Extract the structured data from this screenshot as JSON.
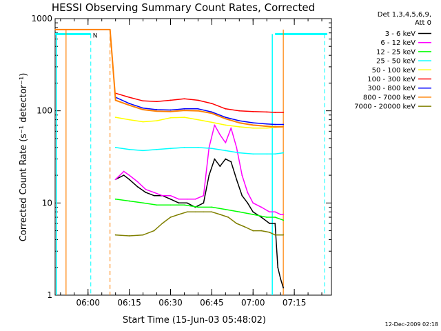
{
  "chart_data": {
    "type": "line",
    "title": "HESSI Observing Summary Count Rates, Corrected",
    "xlabel": "Start Time (15-Jun-03 05:48:02)",
    "ylabel": "Corrected Count Rate (s⁻¹ detector⁻¹)",
    "y_scale": "log",
    "ylim": [
      1,
      1000
    ],
    "xlim": [
      "05:48:02",
      "07:28:30"
    ],
    "x_ticks": [
      "06:00",
      "06:15",
      "06:30",
      "06:45",
      "07:00",
      "07:15"
    ],
    "y_ticks": [
      "1",
      "10",
      "100",
      "1000"
    ],
    "legend": {
      "header": [
        "Det 1,3,4,5,6,9,",
        "Att 0"
      ],
      "entries": [
        {
          "label": "3 - 6 keV",
          "color": "#000000"
        },
        {
          "label": "6 - 12 keV",
          "color": "#ff00ff"
        },
        {
          "label": "12 - 25 keV",
          "color": "#00ff00"
        },
        {
          "label": "25 - 50 keV",
          "color": "#00ffff"
        },
        {
          "label": "50 - 100 keV",
          "color": "#ffff00"
        },
        {
          "label": "100 - 300 keV",
          "color": "#ff0000"
        },
        {
          "label": "300 - 800 keV",
          "color": "#0000ff"
        },
        {
          "label": "800 - 7000 keV",
          "color": "#ff8000"
        },
        {
          "label": "7000 - 20000 keV",
          "color": "#808000"
        }
      ],
      "placement": "right"
    },
    "series": [
      {
        "name": "3 - 6 keV",
        "color": "#000000",
        "x": [
          "06:10",
          "06:13",
          "06:15",
          "06:18",
          "06:21",
          "06:24",
          "06:27",
          "06:30",
          "06:33",
          "06:36",
          "06:39",
          "06:42",
          "06:44",
          "06:46",
          "06:48",
          "06:50",
          "06:52",
          "06:54",
          "06:56",
          "06:58",
          "07:00",
          "07:03",
          "07:06",
          "07:08",
          "07:09",
          "07:10",
          "07:11"
        ],
        "y": [
          18,
          20,
          18,
          15,
          13,
          12,
          12,
          11,
          10,
          10,
          9,
          10,
          20,
          30,
          25,
          30,
          28,
          18,
          12,
          10,
          8,
          7,
          6,
          6,
          2,
          1.5,
          1.2
        ]
      },
      {
        "name": "6 - 12 keV",
        "color": "#ff00ff",
        "x": [
          "06:10",
          "06:13",
          "06:15",
          "06:18",
          "06:21",
          "06:24",
          "06:27",
          "06:30",
          "06:33",
          "06:36",
          "06:39",
          "06:42",
          "06:44",
          "06:46",
          "06:48",
          "06:50",
          "06:52",
          "06:54",
          "06:56",
          "06:58",
          "07:00",
          "07:03",
          "07:06",
          "07:08",
          "07:10",
          "07:11"
        ],
        "y": [
          18,
          22,
          20,
          17,
          14,
          13,
          12,
          12,
          11,
          11,
          11,
          12,
          40,
          70,
          55,
          45,
          65,
          40,
          20,
          13,
          10,
          9,
          8,
          8,
          7.5,
          7.5
        ]
      },
      {
        "name": "12 - 25 keV",
        "color": "#00ff00",
        "x": [
          "06:10",
          "06:15",
          "06:20",
          "06:25",
          "06:30",
          "06:35",
          "06:40",
          "06:45",
          "06:50",
          "06:55",
          "07:00",
          "07:05",
          "07:08",
          "07:11"
        ],
        "y": [
          11,
          10.5,
          10,
          9.5,
          9.5,
          9.5,
          9,
          9,
          8.5,
          8,
          7.5,
          7,
          7,
          6.5
        ]
      },
      {
        "name": "25 - 50 keV",
        "color": "#00ffff",
        "x": [
          "06:10",
          "06:15",
          "06:20",
          "06:25",
          "06:30",
          "06:35",
          "06:40",
          "06:45",
          "06:50",
          "06:55",
          "07:00",
          "07:05",
          "07:08",
          "07:11"
        ],
        "y": [
          40,
          38,
          37,
          38,
          39,
          40,
          40,
          39,
          37,
          35,
          34,
          34,
          34,
          35
        ]
      },
      {
        "name": "50 - 100 keV",
        "color": "#ffff00",
        "x": [
          "06:10",
          "06:15",
          "06:20",
          "06:25",
          "06:30",
          "06:35",
          "06:40",
          "06:45",
          "06:50",
          "06:55",
          "07:00",
          "07:05",
          "07:08",
          "07:11"
        ],
        "y": [
          85,
          80,
          76,
          78,
          84,
          85,
          80,
          75,
          70,
          67,
          65,
          65,
          66,
          67
        ]
      },
      {
        "name": "100 - 300 keV",
        "color": "#ff0000",
        "x": [
          "06:10",
          "06:15",
          "06:20",
          "06:25",
          "06:30",
          "06:35",
          "06:40",
          "06:45",
          "06:50",
          "06:55",
          "07:00",
          "07:05",
          "07:08",
          "07:11"
        ],
        "y": [
          155,
          140,
          128,
          126,
          130,
          135,
          130,
          120,
          105,
          100,
          98,
          97,
          96,
          96
        ]
      },
      {
        "name": "300 - 800 keV",
        "color": "#0000ff",
        "x": [
          "06:10",
          "06:15",
          "06:20",
          "06:25",
          "06:30",
          "06:35",
          "06:40",
          "06:45",
          "06:50",
          "06:55",
          "07:00",
          "07:05",
          "07:08",
          "07:11"
        ],
        "y": [
          140,
          120,
          107,
          103,
          102,
          105,
          105,
          97,
          85,
          78,
          74,
          72,
          71,
          71
        ]
      },
      {
        "name": "800 - 7000 keV",
        "color": "#ff8000",
        "x": [
          "05:48:02",
          "06:08",
          "06:10",
          "06:15",
          "06:20",
          "06:25",
          "06:30",
          "06:35",
          "06:40",
          "06:45",
          "06:50",
          "06:55",
          "07:00",
          "07:05",
          "07:08",
          "07:11"
        ],
        "y": [
          760,
          760,
          130,
          115,
          103,
          99,
          98,
          101,
          100,
          94,
          82,
          74,
          70,
          68,
          67,
          67
        ]
      },
      {
        "name": "7000 - 20000 keV",
        "color": "#808000",
        "x": [
          "06:10",
          "06:15",
          "06:20",
          "06:24",
          "06:27",
          "06:30",
          "06:33",
          "06:36",
          "06:39",
          "06:42",
          "06:45",
          "06:48",
          "06:51",
          "06:54",
          "06:57",
          "07:00",
          "07:03",
          "07:06",
          "07:08",
          "07:11"
        ],
        "y": [
          4.5,
          4.4,
          4.5,
          5,
          6,
          7,
          7.5,
          8,
          8,
          8,
          8,
          7.5,
          7,
          6,
          5.5,
          5,
          5,
          4.8,
          4.5,
          4.5
        ]
      }
    ],
    "markers": {
      "cyan_band": {
        "segments": [
          [
            "05:48:02",
            "06:01"
          ],
          [
            "07:08",
            "07:27"
          ]
        ],
        "level": 680,
        "color": "#00ffff"
      },
      "cyan_vlines_solid": [
        "05:48:30",
        "07:07"
      ],
      "cyan_vlines_dashed": [
        "06:01",
        "07:26"
      ],
      "orange_vlines_solid": [
        "05:52",
        "07:11"
      ],
      "orange_vlines_dashed": [
        "06:08"
      ],
      "flag_label": "N"
    }
  },
  "footer": {
    "timestamp": "12-Dec-2009 02:18"
  }
}
